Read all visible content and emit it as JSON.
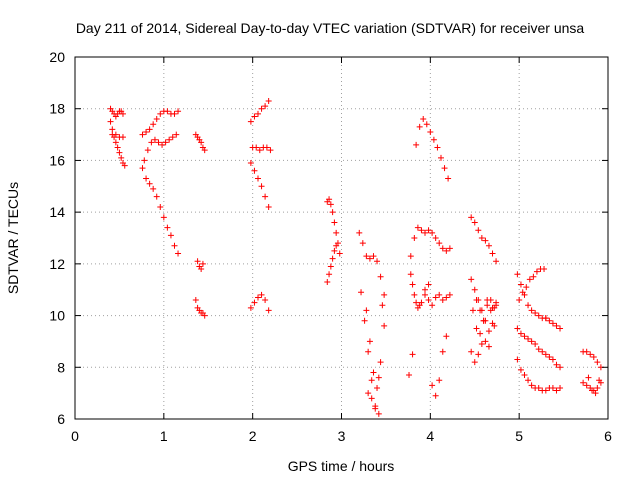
{
  "chart_data": {
    "type": "scatter",
    "title": "Day 211 of 2014, Sidereal Day-to-day VTEC variation (SDTVAR) for receiver unsa",
    "xlabel": "GPS time / hours",
    "ylabel": "SDTVAR / TECUs",
    "xlim": [
      0,
      6
    ],
    "ylim": [
      6,
      20
    ],
    "x_ticks": [
      "0",
      "1",
      "2",
      "3",
      "4",
      "5",
      "6"
    ],
    "y_ticks": [
      "6",
      "8",
      "10",
      "12",
      "14",
      "16",
      "18",
      "20"
    ],
    "grid": true,
    "marker": "plus",
    "color": "#ff0000",
    "series": [
      {
        "x": [
          0.4,
          0.42,
          0.44,
          0.46,
          0.48,
          0.5,
          0.52,
          0.54
        ],
        "y": [
          18.0,
          17.9,
          17.8,
          17.7,
          17.8,
          17.9,
          17.9,
          17.8
        ]
      },
      {
        "x": [
          0.4,
          0.42,
          0.44,
          0.46,
          0.48,
          0.5,
          0.52,
          0.54,
          0.56
        ],
        "y": [
          17.5,
          17.2,
          16.9,
          16.7,
          16.5,
          16.3,
          16.1,
          15.9,
          15.8
        ]
      },
      {
        "x": [
          0.42,
          0.46,
          0.5,
          0.54
        ],
        "y": [
          17.0,
          17.0,
          16.9,
          16.9
        ]
      },
      {
        "x": [
          0.76,
          0.8,
          0.84,
          0.88,
          0.92,
          0.96,
          1.0,
          1.04,
          1.08,
          1.12,
          1.16
        ],
        "y": [
          17.0,
          17.1,
          17.2,
          17.4,
          17.6,
          17.8,
          17.9,
          17.9,
          17.8,
          17.8,
          17.9
        ]
      },
      {
        "x": [
          0.78,
          0.82,
          0.86,
          0.9,
          0.94,
          0.98,
          1.02,
          1.06,
          1.1,
          1.14
        ],
        "y": [
          16.0,
          16.4,
          16.7,
          16.8,
          16.7,
          16.6,
          16.7,
          16.8,
          16.9,
          17.0
        ]
      },
      {
        "x": [
          0.76,
          0.8,
          0.84,
          0.88,
          0.92,
          0.96,
          1.0,
          1.04,
          1.08,
          1.12,
          1.16
        ],
        "y": [
          15.7,
          15.3,
          15.1,
          14.9,
          14.6,
          14.2,
          13.8,
          13.4,
          13.1,
          12.7,
          12.4
        ]
      },
      {
        "x": [
          1.36,
          1.38,
          1.4,
          1.42,
          1.44,
          1.46
        ],
        "y": [
          17.0,
          16.9,
          16.8,
          16.7,
          16.5,
          16.4
        ]
      },
      {
        "x": [
          1.38,
          1.4,
          1.42,
          1.44
        ],
        "y": [
          12.1,
          11.9,
          11.8,
          12.0
        ]
      },
      {
        "x": [
          1.36,
          1.38,
          1.4,
          1.42,
          1.44,
          1.46
        ],
        "y": [
          10.6,
          10.3,
          10.2,
          10.1,
          10.1,
          10.0
        ]
      },
      {
        "x": [
          1.98,
          2.02,
          2.06,
          2.1,
          2.14,
          2.18
        ],
        "y": [
          17.5,
          17.7,
          17.8,
          18.0,
          18.1,
          18.3
        ]
      },
      {
        "x": [
          2.0,
          2.04,
          2.08,
          2.12,
          2.16,
          2.2
        ],
        "y": [
          16.5,
          16.5,
          16.4,
          16.5,
          16.5,
          16.4
        ]
      },
      {
        "x": [
          1.98,
          2.02,
          2.06,
          2.1,
          2.14,
          2.18
        ],
        "y": [
          15.9,
          15.6,
          15.3,
          15.0,
          14.6,
          14.2
        ]
      },
      {
        "x": [
          1.98,
          2.02,
          2.06,
          2.1,
          2.14,
          2.18
        ],
        "y": [
          10.3,
          10.5,
          10.7,
          10.8,
          10.6,
          10.2
        ]
      },
      {
        "x": [
          2.84,
          2.86,
          2.88,
          2.9,
          2.92,
          2.94,
          2.96,
          2.98
        ],
        "y": [
          14.4,
          14.5,
          14.3,
          14.0,
          13.6,
          13.2,
          12.8,
          12.4
        ]
      },
      {
        "x": [
          2.84,
          2.86,
          2.88,
          2.9,
          2.92,
          2.94
        ],
        "y": [
          11.3,
          11.6,
          11.9,
          12.2,
          12.5,
          12.7
        ]
      },
      {
        "x": [
          3.2,
          3.24,
          3.28,
          3.32,
          3.36,
          3.4,
          3.44,
          3.48
        ],
        "y": [
          13.2,
          12.8,
          12.3,
          12.2,
          12.3,
          12.1,
          11.5,
          10.8
        ]
      },
      {
        "x": [
          3.22,
          3.26,
          3.3,
          3.34,
          3.38,
          3.42
        ],
        "y": [
          10.9,
          9.8,
          8.6,
          7.5,
          6.5,
          6.2
        ]
      },
      {
        "x": [
          3.28,
          3.32,
          3.36,
          3.4,
          3.44,
          3.48
        ],
        "y": [
          10.2,
          9.0,
          7.8,
          7.2,
          8.2,
          9.6
        ]
      },
      {
        "x": [
          3.3,
          3.34,
          3.38,
          3.42,
          3.46
        ],
        "y": [
          7.0,
          6.8,
          6.4,
          7.6,
          10.4
        ]
      },
      {
        "x": [
          3.84,
          3.88,
          3.92,
          3.96,
          4.0,
          4.04,
          4.08,
          4.12,
          4.16,
          4.2
        ],
        "y": [
          16.6,
          17.3,
          17.6,
          17.4,
          17.1,
          16.8,
          16.5,
          16.1,
          15.7,
          15.3
        ]
      },
      {
        "x": [
          3.78,
          3.82,
          3.86,
          3.9,
          3.94,
          3.98,
          4.02,
          4.06,
          4.1,
          4.14,
          4.18,
          4.22
        ],
        "y": [
          12.3,
          13.0,
          13.4,
          13.3,
          13.2,
          13.3,
          13.2,
          13.0,
          12.8,
          12.6,
          12.5,
          12.6
        ]
      },
      {
        "x": [
          3.78,
          3.8,
          3.82,
          3.84,
          3.86,
          3.88
        ],
        "y": [
          11.6,
          11.2,
          10.8,
          10.5,
          10.3,
          10.4
        ]
      },
      {
        "x": [
          3.9,
          3.94,
          3.98,
          4.02,
          4.06,
          4.1,
          4.14,
          4.18,
          4.22
        ],
        "y": [
          10.5,
          10.8,
          10.6,
          10.4,
          10.7,
          10.8,
          10.6,
          10.7,
          10.8
        ]
      },
      {
        "x": [
          3.76,
          3.8
        ],
        "y": [
          7.7,
          8.5
        ]
      },
      {
        "x": [
          3.94,
          3.98,
          4.02,
          4.06,
          4.1,
          4.14,
          4.18
        ],
        "y": [
          11.0,
          11.2,
          7.3,
          6.9,
          7.5,
          8.6,
          9.2
        ]
      },
      {
        "x": [
          4.46,
          4.5,
          4.54,
          4.58,
          4.62,
          4.66,
          4.7,
          4.74
        ],
        "y": [
          13.8,
          13.6,
          13.3,
          13.0,
          12.9,
          12.7,
          12.4,
          12.1
        ]
      },
      {
        "x": [
          4.46,
          4.5,
          4.54,
          4.58,
          4.62,
          4.66,
          4.7,
          4.74
        ],
        "y": [
          11.4,
          11.0,
          10.6,
          10.2,
          9.8,
          9.4,
          9.7,
          10.4
        ]
      },
      {
        "x": [
          4.48,
          4.52,
          4.56,
          4.6,
          4.64,
          4.68,
          4.72
        ],
        "y": [
          10.2,
          9.5,
          9.3,
          9.8,
          10.6,
          10.2,
          9.6
        ]
      },
      {
        "x": [
          4.46,
          4.5,
          4.54,
          4.58,
          4.62,
          4.66,
          4.7,
          4.74
        ],
        "y": [
          8.6,
          8.2,
          8.5,
          8.9,
          9.0,
          8.8,
          10.3,
          10.5
        ]
      },
      {
        "x": [
          4.52,
          4.56,
          4.6,
          4.64,
          4.68,
          4.72
        ],
        "y": [
          10.6,
          10.2,
          9.8,
          10.4,
          10.6,
          10.3
        ]
      },
      {
        "x": [
          4.98,
          5.02,
          5.06,
          5.1,
          5.14,
          5.18,
          5.22,
          5.26,
          5.3
        ],
        "y": [
          11.6,
          11.2,
          10.8,
          10.4,
          10.2,
          10.1,
          10.0,
          9.9,
          9.9
        ]
      },
      {
        "x": [
          5.0,
          5.04,
          5.08,
          5.12,
          5.16,
          5.2,
          5.24,
          5.28
        ],
        "y": [
          10.6,
          10.9,
          11.1,
          11.4,
          11.5,
          11.7,
          11.8,
          11.8
        ]
      },
      {
        "x": [
          5.3,
          5.34,
          5.38,
          5.42,
          5.46
        ],
        "y": [
          9.9,
          9.8,
          9.7,
          9.6,
          9.5
        ]
      },
      {
        "x": [
          4.98,
          5.02,
          5.06,
          5.1,
          5.14,
          5.18,
          5.22,
          5.26,
          5.3,
          5.34,
          5.38,
          5.42,
          5.46
        ],
        "y": [
          9.5,
          9.3,
          9.2,
          9.1,
          9.0,
          8.9,
          8.7,
          8.6,
          8.5,
          8.4,
          8.3,
          8.1,
          8.0
        ]
      },
      {
        "x": [
          4.98,
          5.02,
          5.06,
          5.1,
          5.14,
          5.18,
          5.22,
          5.26,
          5.3,
          5.34,
          5.38,
          5.42,
          5.46
        ],
        "y": [
          8.3,
          7.9,
          7.7,
          7.5,
          7.3,
          7.2,
          7.2,
          7.1,
          7.1,
          7.2,
          7.2,
          7.1,
          7.2
        ]
      },
      {
        "x": [
          5.72,
          5.76,
          5.8,
          5.84,
          5.88,
          5.92
        ],
        "y": [
          8.6,
          8.6,
          8.5,
          8.4,
          8.2,
          8.0
        ]
      },
      {
        "x": [
          5.72,
          5.76,
          5.8,
          5.84,
          5.88,
          5.92
        ],
        "y": [
          7.4,
          7.3,
          7.2,
          7.1,
          7.2,
          7.4
        ]
      },
      {
        "x": [
          5.78,
          5.82,
          5.86,
          5.9
        ],
        "y": [
          7.6,
          7.1,
          7.0,
          7.5
        ]
      }
    ]
  }
}
